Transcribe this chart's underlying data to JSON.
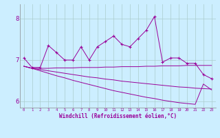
{
  "xlabel": "Windchill (Refroidissement éolien,°C)",
  "x": [
    0,
    1,
    2,
    3,
    4,
    5,
    6,
    7,
    8,
    9,
    10,
    11,
    12,
    13,
    14,
    15,
    16,
    17,
    18,
    19,
    20,
    21,
    22,
    23
  ],
  "line1": [
    7.05,
    6.82,
    6.82,
    7.35,
    7.18,
    7.0,
    7.0,
    7.32,
    7.0,
    7.32,
    7.45,
    7.58,
    7.38,
    7.32,
    7.52,
    7.72,
    8.05,
    6.95,
    7.05,
    7.05,
    6.92,
    6.92,
    6.65,
    6.55
  ],
  "line2": [
    6.85,
    6.8,
    6.8,
    6.8,
    6.81,
    6.81,
    6.81,
    6.82,
    6.82,
    6.82,
    6.83,
    6.83,
    6.84,
    6.84,
    6.84,
    6.85,
    6.85,
    6.86,
    6.86,
    6.86,
    6.87,
    6.87,
    6.87,
    6.87
  ],
  "line3": [
    6.85,
    6.8,
    6.77,
    6.74,
    6.71,
    6.68,
    6.65,
    6.62,
    6.59,
    6.57,
    6.54,
    6.52,
    6.49,
    6.47,
    6.45,
    6.43,
    6.41,
    6.39,
    6.37,
    6.35,
    6.34,
    6.32,
    6.31,
    6.3
  ],
  "line4": [
    6.85,
    6.8,
    6.74,
    6.68,
    6.62,
    6.57,
    6.51,
    6.46,
    6.41,
    6.36,
    6.31,
    6.26,
    6.22,
    6.18,
    6.14,
    6.1,
    6.07,
    6.03,
    6.0,
    5.97,
    5.95,
    5.93,
    6.42,
    6.28
  ],
  "line_color": "#990099",
  "bg_color": "#cceeff",
  "grid_color": "#aacccc",
  "ylim": [
    5.85,
    8.35
  ],
  "yticks": [
    6,
    7,
    8
  ],
  "xlim": [
    -0.5,
    23.5
  ]
}
